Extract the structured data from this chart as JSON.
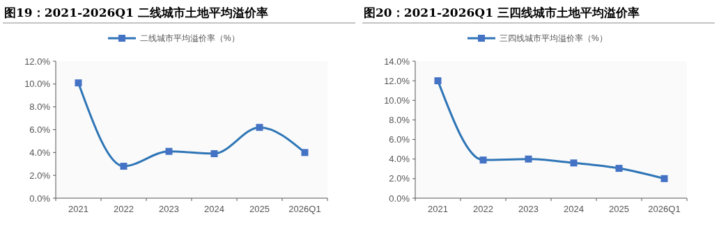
{
  "chart_data": [
    {
      "type": "line",
      "title": "图19：2021-2026Q1 二线城市土地平均溢价率",
      "categories": [
        "2021",
        "2022",
        "2023",
        "2024",
        "2025",
        "2026Q1"
      ],
      "series": [
        {
          "name": "二线城市平均溢价率（%）",
          "color": "#4472c4",
          "values": [
            10.1,
            2.8,
            4.1,
            3.9,
            6.2,
            4.0
          ]
        }
      ],
      "ylim": [
        0,
        12
      ],
      "yticks": [
        {
          "value": 0,
          "label": "0.0%"
        },
        {
          "value": 2,
          "label": "2.0%"
        },
        {
          "value": 4,
          "label": "4.0%"
        },
        {
          "value": 6,
          "label": "6.0%"
        },
        {
          "value": 8,
          "label": "8.0%"
        },
        {
          "value": 10,
          "label": "10.0%"
        },
        {
          "value": 12,
          "label": "12.0%"
        }
      ],
      "legend": "top",
      "marker": "square",
      "grid": false
    },
    {
      "type": "line",
      "title": "图20：2021-2026Q1 三四线城市土地平均溢价率",
      "categories": [
        "2021",
        "2022",
        "2023",
        "2024",
        "2025",
        "2026Q1"
      ],
      "series": [
        {
          "name": "三四线城市平均溢价率（%）",
          "color": "#4472c4",
          "values": [
            12.0,
            3.9,
            4.0,
            3.6,
            3.05,
            2.0
          ]
        }
      ],
      "ylim": [
        0,
        14
      ],
      "yticks": [
        {
          "value": 0,
          "label": "0.0%"
        },
        {
          "value": 2,
          "label": "2.0%"
        },
        {
          "value": 4,
          "label": "4.0%"
        },
        {
          "value": 6,
          "label": "6.0%"
        },
        {
          "value": 8,
          "label": "8.0%"
        },
        {
          "value": 10,
          "label": "10.0%"
        },
        {
          "value": 12,
          "label": "12.0%"
        },
        {
          "value": 14,
          "label": "14.0%"
        }
      ],
      "legend": "top",
      "marker": "square",
      "grid": false
    }
  ]
}
